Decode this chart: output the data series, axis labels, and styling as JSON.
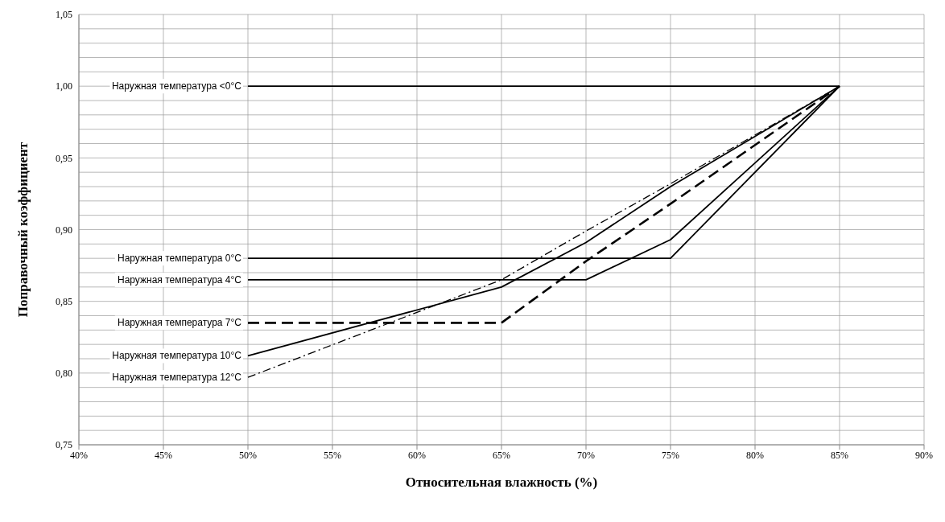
{
  "chart_data": {
    "type": "line",
    "xlabel": "Относительная влажность (%)",
    "ylabel": "Поправочный коэффициент",
    "x": [
      50,
      65,
      70,
      75,
      85
    ],
    "series": [
      {
        "name": "Наружная температура <0°C",
        "color": "#000000",
        "values": [
          1.0,
          1.0,
          1.0,
          1.0,
          1.0
        ]
      },
      {
        "name": "Наружная температура 0°C",
        "color": "#000000",
        "values": [
          0.88,
          0.88,
          0.88,
          0.88,
          1.0
        ]
      },
      {
        "name": "Наружная температура 4°C",
        "color": "#000000",
        "values": [
          0.865,
          0.865,
          0.865,
          0.893,
          1.0
        ]
      },
      {
        "name": "Наружная температура 7°C",
        "color": "#000000",
        "line_style": "dashed",
        "values": [
          0.835,
          0.835,
          0.878,
          0.918,
          1.0
        ]
      },
      {
        "name": "Наружная температура 10°C",
        "color": "#000000",
        "values": [
          0.812,
          0.86,
          0.891,
          0.93,
          1.0
        ]
      },
      {
        "name": "Наружная температура 12°C",
        "color": "#000000",
        "line_style": "dotted",
        "values": [
          0.797,
          0.865,
          0.899,
          0.932,
          1.0
        ]
      }
    ],
    "xlim": [
      40,
      90
    ],
    "xticks": [
      {
        "value": 40,
        "label": "40%"
      },
      {
        "value": 45,
        "label": "45%"
      },
      {
        "value": 50,
        "label": "50%"
      },
      {
        "value": 55,
        "label": "55%"
      },
      {
        "value": 60,
        "label": "60%"
      },
      {
        "value": 65,
        "label": "65%"
      },
      {
        "value": 70,
        "label": "70%"
      },
      {
        "value": 75,
        "label": "75%"
      },
      {
        "value": 80,
        "label": "80%"
      },
      {
        "value": 85,
        "label": "85%"
      },
      {
        "value": 90,
        "label": "90%"
      }
    ],
    "ylim": [
      0.75,
      1.05
    ],
    "yticks": [
      {
        "value": 0.75,
        "label": "0,75"
      },
      {
        "value": 0.76,
        "label": null
      },
      {
        "value": 0.77,
        "label": null
      },
      {
        "value": 0.78,
        "label": null
      },
      {
        "value": 0.79,
        "label": null
      },
      {
        "value": 0.8,
        "label": "0,80"
      },
      {
        "value": 0.81,
        "label": null
      },
      {
        "value": 0.82,
        "label": null
      },
      {
        "value": 0.83,
        "label": null
      },
      {
        "value": 0.84,
        "label": null
      },
      {
        "value": 0.85,
        "label": "0,85"
      },
      {
        "value": 0.86,
        "label": null
      },
      {
        "value": 0.87,
        "label": null
      },
      {
        "value": 0.88,
        "label": null
      },
      {
        "value": 0.89,
        "label": null
      },
      {
        "value": 0.9,
        "label": "0,90"
      },
      {
        "value": 0.91,
        "label": null
      },
      {
        "value": 0.92,
        "label": null
      },
      {
        "value": 0.93,
        "label": null
      },
      {
        "value": 0.94,
        "label": null
      },
      {
        "value": 0.95,
        "label": "0,95"
      },
      {
        "value": 0.96,
        "label": null
      },
      {
        "value": 0.97,
        "label": null
      },
      {
        "value": 0.98,
        "label": null
      },
      {
        "value": 0.99,
        "label": null
      },
      {
        "value": 1.0,
        "label": "1,00"
      },
      {
        "value": 1.01,
        "label": null
      },
      {
        "value": 1.02,
        "label": null
      },
      {
        "value": 1.03,
        "label": null
      },
      {
        "value": 1.04,
        "label": null
      },
      {
        "value": 1.05,
        "label": "1,05"
      }
    ],
    "grid": true,
    "legend": false,
    "marker": "none",
    "line_style": "solid"
  }
}
